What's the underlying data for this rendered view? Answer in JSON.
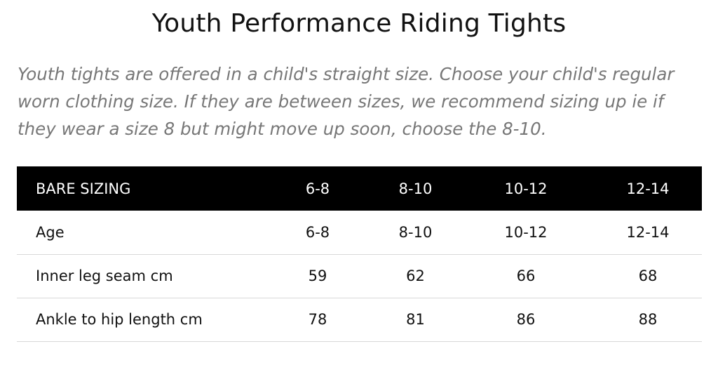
{
  "title": "Youth Performance Riding Tights",
  "intro": "Youth tights are offered in a child's straight size. Choose your child's regular worn clothing size. If they are between sizes, we recommend sizing up ie if they wear a size 8 but might move up soon, choose the 8-10.",
  "table": {
    "headers": [
      "BARE SIZING",
      "6-8",
      "8-10",
      "10-12",
      "12-14"
    ],
    "rows": [
      [
        "Age",
        "6-8",
        "8-10",
        "10-12",
        "12-14"
      ],
      [
        "Inner leg seam cm",
        "59",
        "62",
        "66",
        "68"
      ],
      [
        "Ankle to hip length cm",
        "78",
        "81",
        "86",
        "88"
      ]
    ]
  },
  "colors": {
    "header_bg": "#000000",
    "header_text": "#ffffff",
    "intro_text": "#777777",
    "row_divider": "#d8d8d8"
  }
}
